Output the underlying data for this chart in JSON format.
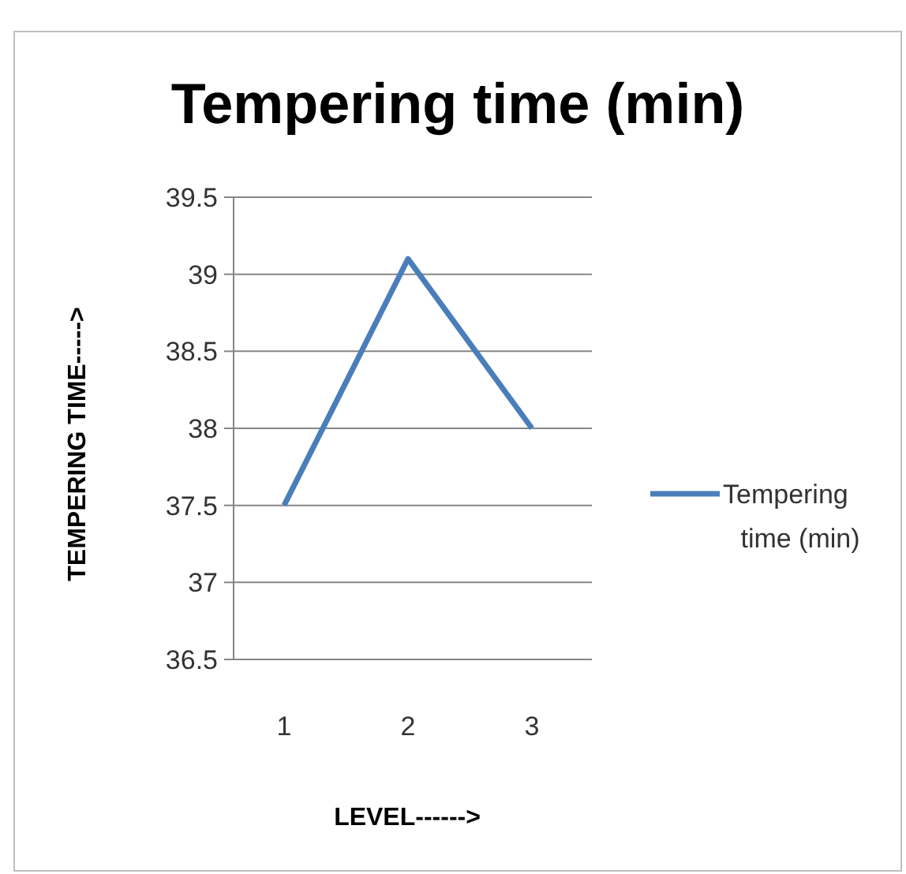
{
  "chart_data": {
    "type": "line",
    "title": "Tempering time (min)",
    "xlabel": "LEVEL------>",
    "ylabel": "TEMPERING TIME----->",
    "categories": [
      "1",
      "2",
      "3"
    ],
    "series": [
      {
        "name": "Tempering time (min)",
        "color": "#4a7ebb",
        "values": [
          37.5,
          39.1,
          38.0
        ]
      }
    ],
    "ylim": [
      36.5,
      39.5
    ],
    "yticks": [
      36.5,
      37,
      37.5,
      38,
      38.5,
      39,
      39.5
    ],
    "grid": "y",
    "legend": "right",
    "marker": "none",
    "line_style": "solid"
  }
}
